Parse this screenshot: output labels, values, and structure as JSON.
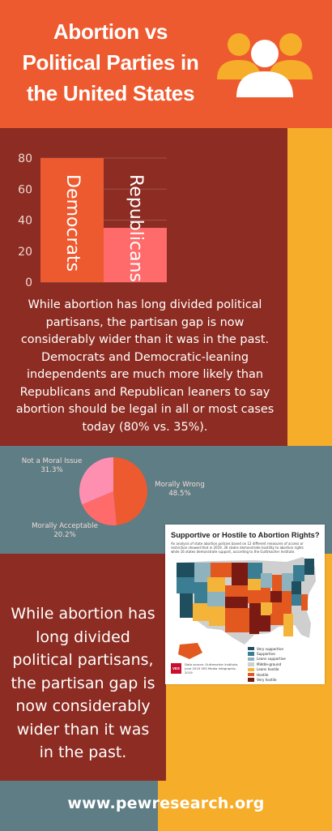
{
  "header": {
    "title": "Abortion vs Political Parties in the United States",
    "icon": "users-icon"
  },
  "colors": {
    "orange": "#ee5a2f",
    "maroon": "#8c2c22",
    "slate": "#5e7d85",
    "yellow": "#f6ad2a",
    "pink": "#ff6b6b"
  },
  "chart_data": [
    {
      "type": "bar",
      "categories": [
        "Democrats",
        "Republicans"
      ],
      "values": [
        80,
        35
      ],
      "ylim": [
        0,
        80
      ],
      "yticks": [
        "0",
        "20",
        "40",
        "60",
        "80"
      ],
      "grid": true
    },
    {
      "type": "pie",
      "slices": [
        {
          "label": "Morally Wrong",
          "percent": "48.5%",
          "value": 48.5
        },
        {
          "label": "Morally Acceptable",
          "percent": "20.2%",
          "value": 20.2
        },
        {
          "label": "Not a Moral Issue",
          "percent": "31.3%",
          "value": 31.3
        }
      ]
    }
  ],
  "paragraph1": "While abortion has long divided political partisans, the partisan gap is now considerably wider than it was in the past. Democrats and Democratic-leaning independents are much more likely than Republicans and Republican leaners to say abortion should be legal in all or most cases today (80% vs. 35%).",
  "paragraph2": "While abortion has long divided political partisans, the partisan gap is now considerably wider than it was in the past.",
  "map": {
    "title": "Supportive or Hostile to Abortion Rights?",
    "subtitle": "An analysis of state abortion policies based on 12 different measures of access or restriction showed that in 2019, 30 states demonstrate hostility to abortion rights while 16 states demonstrate support, according to the Guttmacher Institute.",
    "legend": [
      {
        "label": "Very supportive",
        "color": "#1f4e5f"
      },
      {
        "label": "Supportive",
        "color": "#3b7e93"
      },
      {
        "label": "Leans supportive",
        "color": "#8eb3bf"
      },
      {
        "label": "Middle-ground",
        "color": "#cfcfcf"
      },
      {
        "label": "Leans hostile",
        "color": "#f4b43a"
      },
      {
        "label": "Hostile",
        "color": "#e2581f"
      },
      {
        "label": "Very hostile",
        "color": "#7a1a12"
      }
    ],
    "logo": "VES",
    "source": "Data source: Guttmacher Institute, June 2019 VES Media Infographic, 2019"
  },
  "footer": {
    "url": "www.pewresearch.org"
  }
}
